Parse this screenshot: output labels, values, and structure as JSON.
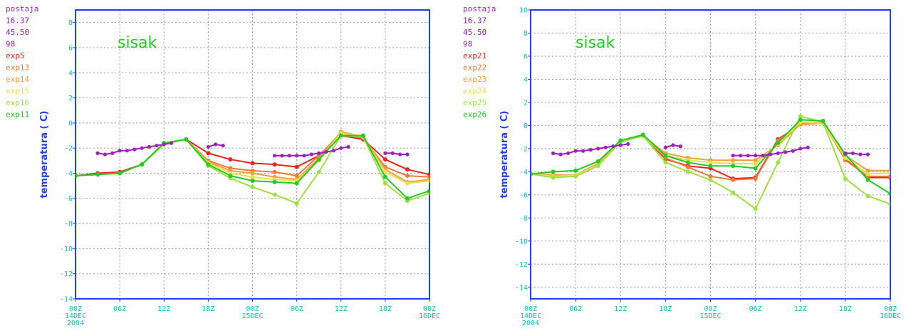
{
  "colors": {
    "frame": "#2040ff",
    "tick_text": "#10c0c8",
    "ylabel": "#2040ff",
    "title": "#22cc22",
    "grid": "#9a9a9a"
  },
  "chart_data": [
    {
      "type": "line",
      "title": "sisak",
      "ylabel": "temperatura ( C)",
      "xlabel": "",
      "ylim": [
        -14,
        9
      ],
      "yticks": [
        -14,
        -12,
        -10,
        -8,
        -6,
        -4,
        -2,
        0,
        2,
        4,
        6,
        8
      ],
      "xlim": [
        0,
        48
      ],
      "xticks": [
        {
          "x": 0,
          "lines": [
            "00Z",
            "14DEC",
            "2004"
          ]
        },
        {
          "x": 6,
          "lines": [
            "06Z"
          ]
        },
        {
          "x": 12,
          "lines": [
            "12Z"
          ]
        },
        {
          "x": 18,
          "lines": [
            "18Z"
          ]
        },
        {
          "x": 24,
          "lines": [
            "00Z",
            "15DEC"
          ]
        },
        {
          "x": 30,
          "lines": [
            "06Z"
          ]
        },
        {
          "x": 36,
          "lines": [
            "12Z"
          ]
        },
        {
          "x": 42,
          "lines": [
            "18Z"
          ]
        },
        {
          "x": 48,
          "lines": [
            "00Z",
            "16DEC"
          ]
        }
      ],
      "grid": true,
      "legend_position": "left",
      "legend_header": [
        {
          "text": "postaja",
          "color": "#a020c0"
        },
        {
          "text": "16.37",
          "color": "#a020c0"
        },
        {
          "text": "45.50",
          "color": "#a020c0"
        },
        {
          "text": "98",
          "color": "#a020c0"
        }
      ],
      "station": {
        "name": "postaja",
        "color": "#a020c0",
        "segments": [
          {
            "x": [
              3,
              4,
              5,
              6,
              7,
              8,
              9,
              10,
              11,
              12,
              13
            ],
            "y": [
              -2.4,
              -2.5,
              -2.4,
              -2.2,
              -2.2,
              -2.1,
              -2.0,
              -1.9,
              -1.8,
              -1.7,
              -1.6
            ]
          },
          {
            "x": [
              18,
              19,
              20
            ],
            "y": [
              -1.9,
              -1.7,
              -1.8
            ]
          },
          {
            "x": [
              27,
              28,
              29,
              30,
              31,
              32,
              33,
              34,
              35,
              36,
              37
            ],
            "y": [
              -2.6,
              -2.6,
              -2.6,
              -2.6,
              -2.6,
              -2.5,
              -2.4,
              -2.3,
              -2.2,
              -2.0,
              -1.9
            ]
          },
          {
            "x": [
              42,
              43,
              44,
              45
            ],
            "y": [
              -2.4,
              -2.4,
              -2.5,
              -2.5
            ]
          }
        ]
      },
      "series": [
        {
          "name": "exp5",
          "color": "#ee2222",
          "x": [
            0,
            3,
            6,
            9,
            12,
            15,
            18,
            21,
            24,
            27,
            30,
            33,
            36,
            39,
            42,
            45,
            48
          ],
          "y": [
            -4.2,
            -4.0,
            -3.9,
            -3.3,
            -1.6,
            -1.3,
            -2.4,
            -2.9,
            -3.2,
            -3.3,
            -3.5,
            -2.6,
            -1.0,
            -1.3,
            -2.9,
            -3.7,
            -4.1
          ]
        },
        {
          "name": "exp13",
          "color": "#f07a3a",
          "x": [
            0,
            3,
            6,
            9,
            12,
            15,
            18,
            21,
            24,
            27,
            30,
            33,
            36,
            39,
            42,
            45,
            48
          ],
          "y": [
            -4.2,
            -4.1,
            -4.0,
            -3.3,
            -1.6,
            -1.3,
            -3.0,
            -3.6,
            -3.8,
            -3.9,
            -4.2,
            -2.6,
            -0.8,
            -1.2,
            -3.5,
            -4.2,
            -4.3
          ]
        },
        {
          "name": "exp14",
          "color": "#f0a040",
          "x": [
            0,
            3,
            6,
            9,
            12,
            15,
            18,
            21,
            24,
            27,
            30,
            33,
            36,
            39,
            42,
            45,
            48
          ],
          "y": [
            -4.2,
            -4.1,
            -4.0,
            -3.3,
            -1.6,
            -1.3,
            -3.1,
            -3.8,
            -4.0,
            -4.3,
            -4.5,
            -2.8,
            -0.7,
            -1.1,
            -3.7,
            -4.7,
            -4.5
          ]
        },
        {
          "name": "exp15",
          "color": "#e8e050",
          "x": [
            0,
            3,
            6,
            9,
            12,
            15,
            18,
            21,
            24,
            27,
            30,
            33,
            36,
            39,
            42,
            45,
            48
          ],
          "y": [
            -4.2,
            -4.1,
            -4.0,
            -3.3,
            -1.6,
            -1.3,
            -3.2,
            -4.0,
            -4.3,
            -4.5,
            -4.6,
            -3.0,
            -0.8,
            -1.1,
            -3.9,
            -4.8,
            -4.6
          ]
        },
        {
          "name": "exp16",
          "color": "#a0e040",
          "x": [
            0,
            3,
            6,
            9,
            12,
            15,
            18,
            21,
            24,
            27,
            30,
            33,
            36,
            39,
            42,
            45,
            48
          ],
          "y": [
            -4.2,
            -4.1,
            -4.0,
            -3.3,
            -1.7,
            -1.3,
            -3.4,
            -4.4,
            -5.1,
            -5.7,
            -6.4,
            -3.9,
            -1.0,
            -1.1,
            -4.8,
            -6.2,
            -5.6
          ]
        },
        {
          "name": "exp11",
          "color": "#22cc22",
          "x": [
            0,
            3,
            6,
            9,
            12,
            15,
            18,
            21,
            24,
            27,
            30,
            33,
            36,
            39,
            42,
            45,
            48
          ],
          "y": [
            -4.2,
            -4.1,
            -4.0,
            -3.3,
            -1.6,
            -1.3,
            -3.3,
            -4.2,
            -4.6,
            -4.7,
            -4.8,
            -2.9,
            -1.0,
            -1.0,
            -4.3,
            -6.0,
            -5.4
          ]
        }
      ]
    },
    {
      "type": "line",
      "title": "sisak",
      "ylabel": "temperatura ( C)",
      "xlabel": "",
      "ylim": [
        -15,
        10
      ],
      "yticks": [
        -14,
        -12,
        -10,
        -8,
        -6,
        -4,
        -2,
        0,
        2,
        4,
        6,
        8,
        10
      ],
      "xlim": [
        0,
        48
      ],
      "xticks": [
        {
          "x": 0,
          "lines": [
            "00Z",
            "14DEC",
            "2004"
          ]
        },
        {
          "x": 6,
          "lines": [
            "06Z"
          ]
        },
        {
          "x": 12,
          "lines": [
            "12Z"
          ]
        },
        {
          "x": 18,
          "lines": [
            "18Z"
          ]
        },
        {
          "x": 24,
          "lines": [
            "00Z",
            "15DEC"
          ]
        },
        {
          "x": 30,
          "lines": [
            "06Z"
          ]
        },
        {
          "x": 36,
          "lines": [
            "12Z"
          ]
        },
        {
          "x": 42,
          "lines": [
            "18Z"
          ]
        },
        {
          "x": 48,
          "lines": [
            "00Z",
            "16DEC"
          ]
        }
      ],
      "grid": true,
      "legend_position": "left",
      "legend_header": [
        {
          "text": "postaja",
          "color": "#a020c0"
        },
        {
          "text": "16.37",
          "color": "#a020c0"
        },
        {
          "text": "45.50",
          "color": "#a020c0"
        },
        {
          "text": "98",
          "color": "#a020c0"
        }
      ],
      "station": {
        "name": "postaja",
        "color": "#a020c0",
        "segments": [
          {
            "x": [
              3,
              4,
              5,
              6,
              7,
              8,
              9,
              10,
              11,
              12,
              13
            ],
            "y": [
              -2.4,
              -2.5,
              -2.4,
              -2.2,
              -2.2,
              -2.1,
              -2.0,
              -1.9,
              -1.8,
              -1.7,
              -1.6
            ]
          },
          {
            "x": [
              18,
              19,
              20
            ],
            "y": [
              -1.9,
              -1.7,
              -1.8
            ]
          },
          {
            "x": [
              27,
              28,
              29,
              30,
              31,
              32,
              33,
              34,
              35,
              36,
              37
            ],
            "y": [
              -2.6,
              -2.6,
              -2.6,
              -2.6,
              -2.6,
              -2.5,
              -2.4,
              -2.3,
              -2.2,
              -2.0,
              -1.9
            ]
          },
          {
            "x": [
              42,
              43,
              44,
              45
            ],
            "y": [
              -2.4,
              -2.4,
              -2.5,
              -2.5
            ]
          }
        ]
      },
      "series": [
        {
          "name": "exp21",
          "color": "#ee2222",
          "x": [
            0,
            3,
            6,
            9,
            12,
            15,
            18,
            21,
            24,
            27,
            30,
            33,
            36,
            39,
            42,
            45,
            48
          ],
          "y": [
            -4.2,
            -4.3,
            -4.3,
            -3.3,
            -1.4,
            -0.9,
            -2.9,
            -3.5,
            -3.7,
            -4.6,
            -4.5,
            -1.2,
            0.1,
            0.2,
            -2.9,
            -4.5,
            -4.5
          ]
        },
        {
          "name": "exp22",
          "color": "#f07a3a",
          "x": [
            0,
            3,
            6,
            9,
            12,
            15,
            18,
            21,
            24,
            27,
            30,
            33,
            36,
            39,
            42,
            45,
            48
          ],
          "y": [
            -4.2,
            -4.3,
            -4.3,
            -3.3,
            -1.4,
            -0.9,
            -2.8,
            -3.6,
            -4.4,
            -4.7,
            -4.6,
            -1.3,
            0.2,
            0.3,
            -3.0,
            -4.4,
            -4.4
          ]
        },
        {
          "name": "exp23",
          "color": "#f0a040",
          "x": [
            0,
            3,
            6,
            9,
            12,
            15,
            18,
            21,
            24,
            27,
            30,
            33,
            36,
            39,
            42,
            45,
            48
          ],
          "y": [
            -4.2,
            -4.3,
            -4.3,
            -3.3,
            -1.4,
            -0.9,
            -2.4,
            -2.8,
            -3.0,
            -3.0,
            -3.0,
            -1.7,
            0.1,
            0.2,
            -2.6,
            -3.9,
            -3.9
          ]
        },
        {
          "name": "exp24",
          "color": "#e8e050",
          "x": [
            0,
            3,
            6,
            9,
            12,
            15,
            18,
            21,
            24,
            27,
            30,
            33,
            36,
            39,
            42,
            45,
            48
          ],
          "y": [
            -4.2,
            -4.4,
            -4.3,
            -3.4,
            -1.4,
            -0.9,
            -2.6,
            -3.0,
            -3.2,
            -3.3,
            -3.3,
            -1.6,
            0.3,
            0.2,
            -2.8,
            -4.2,
            -4.1
          ]
        },
        {
          "name": "exp25",
          "color": "#a0e040",
          "x": [
            0,
            3,
            6,
            9,
            12,
            15,
            18,
            21,
            24,
            27,
            30,
            33,
            36,
            39,
            42,
            45,
            48
          ],
          "y": [
            -4.2,
            -4.5,
            -4.4,
            -3.5,
            -1.4,
            -0.9,
            -3.2,
            -4.0,
            -4.7,
            -5.8,
            -7.2,
            -3.2,
            0.8,
            0.3,
            -4.6,
            -6.1,
            -6.8
          ]
        },
        {
          "name": "exp26",
          "color": "#22cc22",
          "x": [
            0,
            3,
            6,
            9,
            12,
            15,
            18,
            21,
            24,
            27,
            30,
            33,
            36,
            39,
            42,
            45,
            48
          ],
          "y": [
            -4.2,
            -4.0,
            -3.9,
            -3.1,
            -1.3,
            -0.8,
            -2.6,
            -3.2,
            -3.5,
            -3.5,
            -3.7,
            -1.5,
            0.5,
            0.4,
            -2.5,
            -4.7,
            -5.9
          ]
        }
      ]
    }
  ]
}
